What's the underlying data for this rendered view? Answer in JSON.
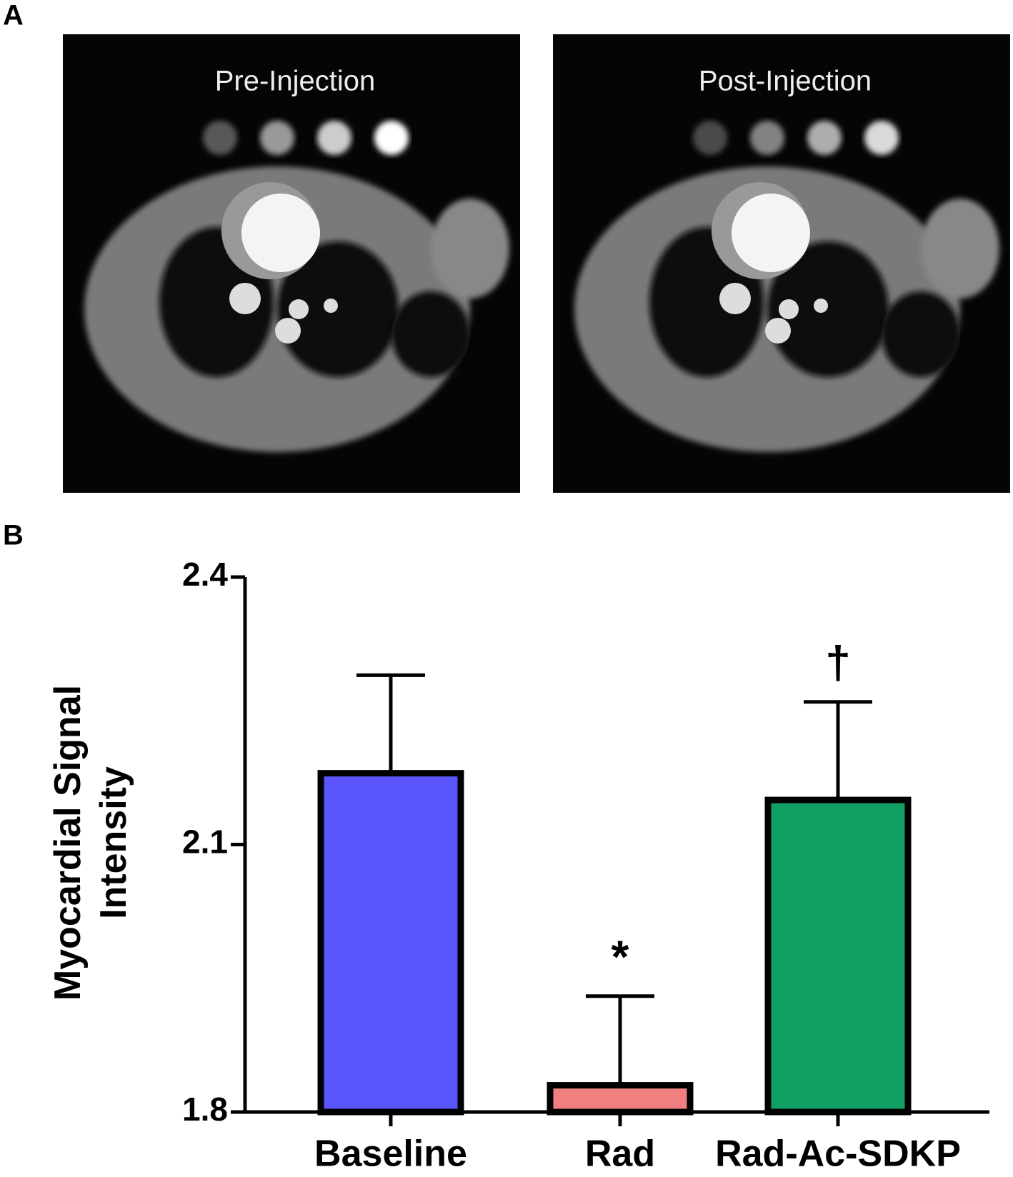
{
  "panels": {
    "a": "A",
    "b": "B"
  },
  "images": [
    "Pre-Injection",
    "Post-Injection"
  ],
  "chart_data": {
    "type": "bar",
    "ylabel": [
      "Myocardial Signal",
      "Intensity"
    ],
    "categories": [
      "Baseline",
      "Rad",
      "Rad-Ac-SDKP"
    ],
    "values": [
      2.18,
      1.83,
      2.15
    ],
    "errors": [
      0.11,
      0.1,
      0.11
    ],
    "colors": [
      "#5a55fa",
      "#f08080",
      "#11a064"
    ],
    "annotations": [
      null,
      "*",
      "†"
    ],
    "ylim": [
      1.8,
      2.4
    ],
    "yticks": [
      1.8,
      2.1,
      2.4
    ]
  }
}
